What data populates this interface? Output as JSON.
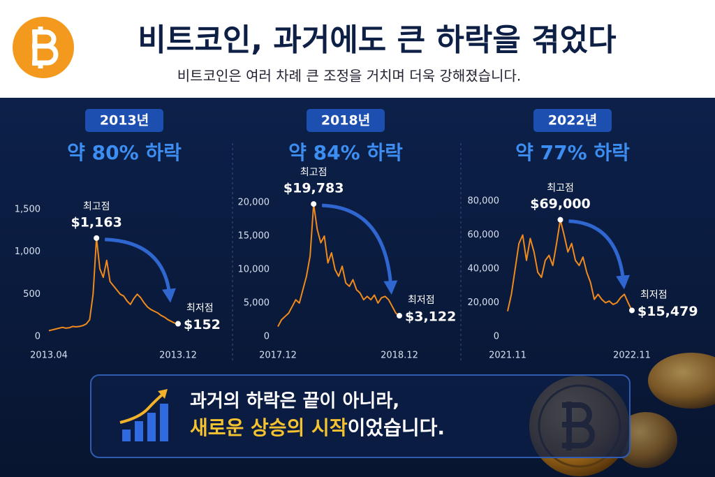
{
  "header": {
    "title": "비트코인, 과거에도 큰 하락을 겪었다",
    "subtitle": "비트코인은 여러 차례 큰 조정을 거치며 더욱 강해졌습니다."
  },
  "chart_data": [
    {
      "type": "line",
      "title": "2013년",
      "subtitle": "약 80% 하락",
      "color": "#f08a1c",
      "categories": [
        "2013.04",
        null,
        null,
        null,
        null,
        null,
        null,
        null,
        null,
        null,
        null,
        null,
        null,
        null,
        null,
        null,
        null,
        null,
        null,
        null,
        null,
        null,
        null,
        null,
        null,
        null,
        null,
        null,
        null,
        null,
        null,
        null,
        null,
        null,
        null,
        null,
        null,
        null,
        "2013.12"
      ],
      "values": [
        70,
        80,
        90,
        100,
        110,
        100,
        105,
        120,
        115,
        120,
        130,
        150,
        200,
        500,
        1163,
        800,
        700,
        900,
        650,
        600,
        550,
        500,
        480,
        420,
        380,
        450,
        500,
        460,
        400,
        350,
        320,
        300,
        280,
        250,
        230,
        200,
        180,
        160,
        152
      ],
      "ylim": [
        0,
        1500
      ],
      "yticks": [
        0,
        500,
        {
          "value": 1000,
          "label": "1,000"
        },
        {
          "value": 1500,
          "label": "1,500"
        }
      ],
      "grid": false,
      "peak": {
        "label": "최고점",
        "value": 1163,
        "value_label": "$1,163"
      },
      "low": {
        "label": "최저점",
        "value": 152,
        "value_label": "$152"
      }
    },
    {
      "type": "line",
      "title": "2018년",
      "subtitle": "약 84% 하락",
      "color": "#f08a1c",
      "categories": [
        "2017.12",
        null,
        null,
        null,
        null,
        null,
        null,
        null,
        null,
        null,
        null,
        null,
        null,
        null,
        null,
        null,
        null,
        null,
        null,
        null,
        null,
        null,
        null,
        null,
        null,
        null,
        null,
        null,
        null,
        null,
        null,
        null,
        null,
        null,
        "2018.12"
      ],
      "values": [
        1500,
        2500,
        3000,
        3500,
        4500,
        5500,
        5000,
        7000,
        9000,
        12000,
        19783,
        16000,
        14000,
        15000,
        11000,
        12500,
        10000,
        9000,
        10500,
        8000,
        7500,
        8500,
        7000,
        6500,
        5500,
        6000,
        5500,
        6200,
        5000,
        5800,
        6000,
        5500,
        4500,
        3500,
        3122
      ],
      "ylim": [
        0,
        20000
      ],
      "yticks": [
        0,
        {
          "value": 5000,
          "label": "5,000"
        },
        {
          "value": 10000,
          "label": "10,000"
        },
        {
          "value": 15000,
          "label": "15,000"
        },
        {
          "value": 20000,
          "label": "20,000"
        }
      ],
      "grid": false,
      "peak": {
        "label": "최고점",
        "value": 19783,
        "value_label": "$19,783"
      },
      "low": {
        "label": "최저점",
        "value": 3122,
        "value_label": "$3,122"
      }
    },
    {
      "type": "line",
      "title": "2022년",
      "subtitle": "약 77% 하락",
      "color": "#f08a1c",
      "categories": [
        "2021.11",
        null,
        null,
        null,
        null,
        null,
        null,
        null,
        null,
        null,
        null,
        null,
        null,
        null,
        null,
        null,
        null,
        null,
        null,
        null,
        null,
        null,
        null,
        null,
        null,
        null,
        null,
        null,
        null,
        null,
        null,
        null,
        null,
        "2022.11"
      ],
      "values": [
        15000,
        25000,
        40000,
        55000,
        60000,
        45000,
        58000,
        50000,
        38000,
        35000,
        45000,
        48000,
        42000,
        55000,
        69000,
        60000,
        50000,
        55000,
        45000,
        42000,
        47000,
        38000,
        32000,
        22000,
        25000,
        22000,
        20000,
        21000,
        19000,
        20000,
        23000,
        25000,
        20000,
        15479
      ],
      "ylim": [
        0,
        80000
      ],
      "yticks": [
        0,
        {
          "value": 20000,
          "label": "20,000"
        },
        {
          "value": 40000,
          "label": "40,000"
        },
        {
          "value": 60000,
          "label": "60,000"
        },
        {
          "value": 80000,
          "label": "80,000"
        }
      ],
      "grid": false,
      "peak": {
        "label": "최고점",
        "value": 69000,
        "value_label": "$69,000"
      },
      "low": {
        "label": "최저점",
        "value": 15479,
        "value_label": "$15,479"
      }
    }
  ],
  "footer": {
    "line1": "과거의 하락은 끝이 아니라,",
    "highlight": "새로운 상승의 시작",
    "rest": "이었습니다."
  }
}
